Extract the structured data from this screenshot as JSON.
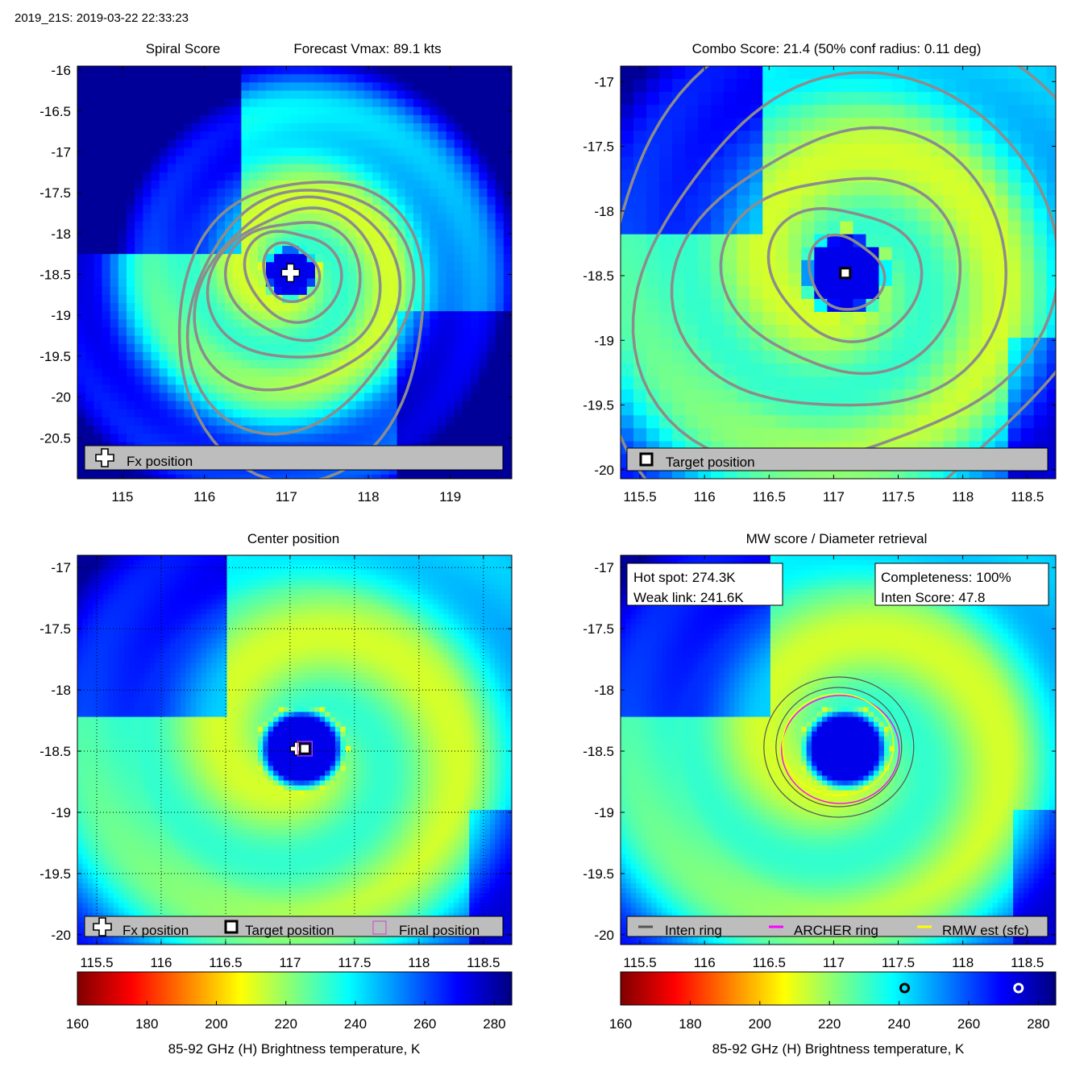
{
  "header": {
    "title": "2019_21S: 2019-03-22 22:33:23"
  },
  "colors": {
    "contour": "#8c8c8c",
    "legend_bg": "#bdbdbd",
    "inten_ring": "#555555",
    "archer_ring": "#ff00ff",
    "rmw_ring": "#ffff00",
    "final_marker": "#cc44cc"
  },
  "chart_data": [
    {
      "type": "heatmap",
      "title": "Spiral Score",
      "subtitle": "Forecast Vmax: 89.1 kts",
      "x_ticks": [
        "115",
        "116",
        "117",
        "118",
        "119"
      ],
      "y_ticks": [
        "-16",
        "-16.5",
        "-17",
        "-17.5",
        "-18",
        "-18.5",
        "-19",
        "-19.5",
        "-20",
        "-20.5"
      ],
      "xlim": [
        114.45,
        119.75
      ],
      "ylim": [
        -21.0,
        -15.95
      ],
      "center": {
        "lon": 117.05,
        "lat": -18.48
      },
      "legend": [
        "Fx position"
      ],
      "grid": false
    },
    {
      "type": "heatmap",
      "title": "Combo Score: 21.4  (50% conf radius: 0.11 deg)",
      "x_ticks": [
        "115.5",
        "116",
        "116.5",
        "117",
        "117.5",
        "118",
        "118.5"
      ],
      "y_ticks": [
        "-17",
        "-17.5",
        "-18",
        "-18.5",
        "-19",
        "-19.5",
        "-20"
      ],
      "xlim": [
        115.35,
        118.72
      ],
      "ylim": [
        -20.07,
        -16.88
      ],
      "center": {
        "lon": 117.09,
        "lat": -18.48
      },
      "legend": [
        "Target position"
      ],
      "grid": false
    },
    {
      "type": "heatmap",
      "title": "Center position",
      "x_ticks": [
        "115.5",
        "116",
        "116.5",
        "117",
        "117.5",
        "118",
        "118.5"
      ],
      "y_ticks": [
        "-17",
        "-17.5",
        "-18",
        "-18.5",
        "-19",
        "-19.5",
        "-20"
      ],
      "xlim": [
        115.35,
        118.72
      ],
      "ylim": [
        -20.08,
        -16.9
      ],
      "center": {
        "lon": 117.09,
        "lat": -18.48
      },
      "legend": [
        "Fx position",
        "Target position",
        "Final position"
      ],
      "grid": true
    },
    {
      "type": "heatmap",
      "title": "MW score / Diameter retrieval",
      "x_ticks": [
        "115.5",
        "116",
        "116.5",
        "117",
        "117.5",
        "118",
        "118.5"
      ],
      "y_ticks": [
        "-17",
        "-17.5",
        "-18",
        "-18.5",
        "-19",
        "-19.5",
        "-20"
      ],
      "xlim": [
        115.35,
        118.72
      ],
      "ylim": [
        -20.08,
        -16.9
      ],
      "center": {
        "lon": 117.09,
        "lat": -18.48
      },
      "legend": [
        "Inten ring",
        "ARCHER ring",
        "RMW est (sfc)"
      ],
      "info_left": [
        "Hot spot: 274.3K",
        "Weak link: 241.6K"
      ],
      "info_right": [
        "Completeness: 100%",
        "Inten Score: 47.8"
      ],
      "grid": false
    }
  ],
  "colorbars": [
    {
      "label": "85-92 GHz (H) Brightness temperature, K",
      "range": [
        160,
        285
      ],
      "ticks": [
        "160",
        "180",
        "200",
        "220",
        "240",
        "260",
        "280"
      ],
      "markers": []
    },
    {
      "label": "85-92 GHz (H) Brightness temperature, K",
      "range": [
        160,
        285
      ],
      "ticks": [
        "160",
        "180",
        "200",
        "220",
        "240",
        "260",
        "280"
      ],
      "markers": [
        {
          "name": "weak-link",
          "value": 241.6
        },
        {
          "name": "hot-spot",
          "value": 274.3
        }
      ]
    }
  ]
}
